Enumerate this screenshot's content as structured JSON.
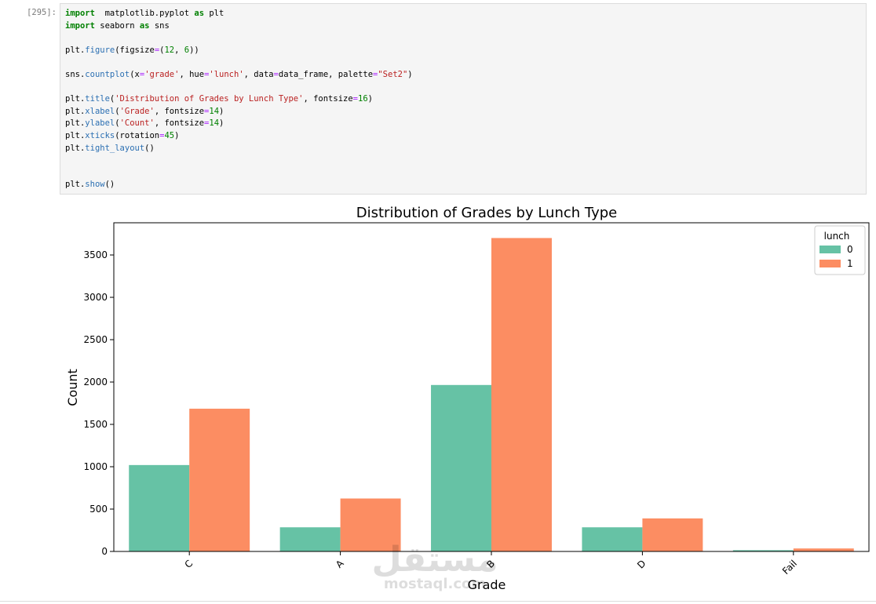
{
  "cell": {
    "prompt": "[295]:",
    "code_lines": [
      [
        [
          "kw",
          "import"
        ],
        [
          "",
          "  matplotlib.pyplot "
        ],
        [
          "kw",
          "as"
        ],
        [
          "",
          " plt"
        ]
      ],
      [
        [
          "kw",
          "import"
        ],
        [
          "",
          " seaborn "
        ],
        [
          "kw",
          "as"
        ],
        [
          "",
          " sns"
        ]
      ],
      [],
      [
        [
          "",
          "plt."
        ],
        [
          "fn",
          "figure"
        ],
        [
          "",
          "(figsize"
        ],
        [
          "op",
          "="
        ],
        [
          "",
          "("
        ],
        [
          "nm",
          "12"
        ],
        [
          "",
          ", "
        ],
        [
          "nm",
          "6"
        ],
        [
          "",
          "))"
        ]
      ],
      [],
      [
        [
          "",
          "sns."
        ],
        [
          "fn",
          "countplot"
        ],
        [
          "",
          "(x"
        ],
        [
          "op",
          "="
        ],
        [
          "st",
          "'grade'"
        ],
        [
          "",
          ", hue"
        ],
        [
          "op",
          "="
        ],
        [
          "st",
          "'lunch'"
        ],
        [
          "",
          ", data"
        ],
        [
          "op",
          "="
        ],
        [
          "",
          "data_frame, palette"
        ],
        [
          "op",
          "="
        ],
        [
          "st",
          "\"Set2\""
        ],
        [
          "",
          ")"
        ]
      ],
      [],
      [
        [
          "",
          "plt."
        ],
        [
          "fn",
          "title"
        ],
        [
          "",
          "("
        ],
        [
          "st",
          "'Distribution of Grades by Lunch Type'"
        ],
        [
          "",
          ", fontsize"
        ],
        [
          "op",
          "="
        ],
        [
          "nm",
          "16"
        ],
        [
          "",
          ")"
        ]
      ],
      [
        [
          "",
          "plt."
        ],
        [
          "fn",
          "xlabel"
        ],
        [
          "",
          "("
        ],
        [
          "st",
          "'Grade'"
        ],
        [
          "",
          ", fontsize"
        ],
        [
          "op",
          "="
        ],
        [
          "nm",
          "14"
        ],
        [
          "",
          ")"
        ]
      ],
      [
        [
          "",
          "plt."
        ],
        [
          "fn",
          "ylabel"
        ],
        [
          "",
          "("
        ],
        [
          "st",
          "'Count'"
        ],
        [
          "",
          ", fontsize"
        ],
        [
          "op",
          "="
        ],
        [
          "nm",
          "14"
        ],
        [
          "",
          ")"
        ]
      ],
      [
        [
          "",
          "plt."
        ],
        [
          "fn",
          "xticks"
        ],
        [
          "",
          "(rotation"
        ],
        [
          "op",
          "="
        ],
        [
          "nm",
          "45"
        ],
        [
          "",
          ")"
        ]
      ],
      [
        [
          "",
          "plt."
        ],
        [
          "fn",
          "tight_layout"
        ],
        [
          "",
          "()"
        ]
      ],
      [],
      [],
      [
        [
          "",
          "plt."
        ],
        [
          "fn",
          "show"
        ],
        [
          "",
          "()"
        ]
      ]
    ]
  },
  "colors": {
    "series0": "#66c2a5",
    "series1": "#fc8d62"
  },
  "chart_data": {
    "type": "bar",
    "title": "Distribution of Grades by Lunch Type",
    "xlabel": "Grade",
    "ylabel": "Count",
    "categories": [
      "C",
      "A",
      "B",
      "D",
      "Fail"
    ],
    "series": [
      {
        "name": "0",
        "values": [
          1020,
          285,
          1965,
          285,
          15
        ]
      },
      {
        "name": "1",
        "values": [
          1685,
          625,
          3700,
          390,
          35
        ]
      }
    ],
    "ylim": [
      0,
      3880
    ],
    "yticks": [
      "0",
      "500",
      "1000",
      "1500",
      "2000",
      "2500",
      "3000",
      "3500"
    ],
    "legend_title": "lunch",
    "legend_position": "top-right",
    "xtick_rotation": 45,
    "grid": false
  },
  "watermark": {
    "arabic": "مستقل",
    "latin": "mostaql.com"
  }
}
